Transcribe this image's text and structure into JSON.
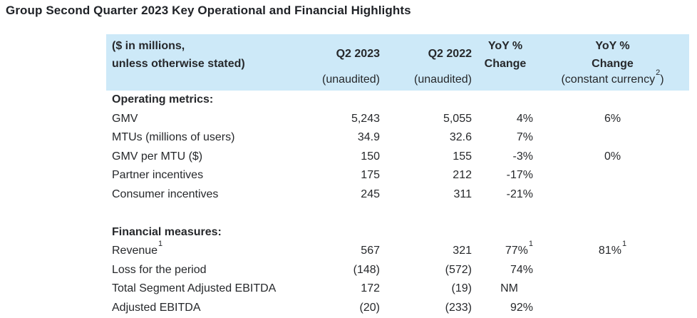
{
  "page_title": "Group Second Quarter 2023 Key Operational and Financial Highlights",
  "colors": {
    "header_band_bg": "#cde9f8",
    "text": "#26282b",
    "background": "#ffffff"
  },
  "table": {
    "header": {
      "label_line1": "($ in millions,",
      "label_line2": "unless otherwise stated)",
      "q2_2023": {
        "title": "Q2 2023",
        "subtitle": "(unaudited)"
      },
      "q2_2022": {
        "title": "Q2 2022",
        "subtitle": "(unaudited)"
      },
      "yoy": {
        "line1": "YoY %",
        "line2": "Change",
        "subtitle": ""
      },
      "yoy_cc": {
        "line1": "YoY %",
        "line2": "Change",
        "sub_pre": "(constant currency",
        "sub_sup": "2",
        "sub_post": ")"
      }
    },
    "rows": [
      {
        "type": "section",
        "label": "Operating metrics:"
      },
      {
        "type": "data",
        "label": "GMV",
        "q2_2023": "5,243",
        "q2_2022": "5,055",
        "yoy": "4%",
        "cc": "6%"
      },
      {
        "type": "data",
        "label": "MTUs (millions of users)",
        "q2_2023": "34.9",
        "q2_2022": "32.6",
        "yoy": "7%",
        "cc": ""
      },
      {
        "type": "data",
        "label": "GMV per MTU ($)",
        "q2_2023": "150",
        "q2_2022": "155",
        "yoy": "-3%",
        "cc": "0%"
      },
      {
        "type": "data",
        "label": "Partner incentives",
        "q2_2023": "175",
        "q2_2022": "212",
        "yoy": "-17%",
        "cc": ""
      },
      {
        "type": "data",
        "label": "Consumer incentives",
        "q2_2023": "245",
        "q2_2022": "311",
        "yoy": "-21%",
        "cc": ""
      },
      {
        "type": "spacer"
      },
      {
        "type": "section",
        "label": "Financial measures:"
      },
      {
        "type": "data",
        "label": "Revenue",
        "label_sup": "1",
        "q2_2023": "567",
        "q2_2022": "321",
        "yoy": "77%",
        "yoy_sup": "1",
        "cc": "81%",
        "cc_sup": "1"
      },
      {
        "type": "data",
        "label": "Loss for the period",
        "q2_2023": "(148)",
        "q2_2022": "(572)",
        "yoy": "74%",
        "cc": ""
      },
      {
        "type": "data",
        "label": "Total Segment Adjusted EBITDA",
        "q2_2023": "172",
        "q2_2022": "(19)",
        "yoy": "NM",
        "cc": ""
      },
      {
        "type": "data",
        "label": "Adjusted EBITDA",
        "q2_2023": "(20)",
        "q2_2022": "(233)",
        "yoy": "92%",
        "cc": ""
      }
    ]
  }
}
